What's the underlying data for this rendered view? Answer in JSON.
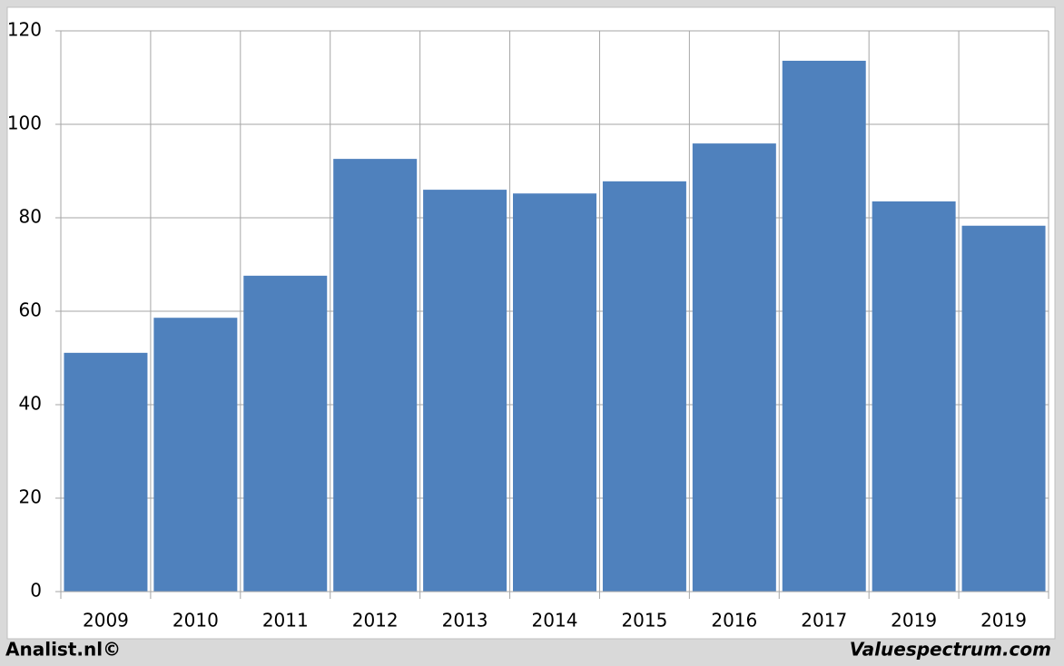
{
  "chart_data": {
    "type": "bar",
    "categories": [
      "2009",
      "2010",
      "2011",
      "2012",
      "2013",
      "2014",
      "2015",
      "2016",
      "2017",
      "2019",
      "2019"
    ],
    "values": [
      51.1,
      58.6,
      67.6,
      92.6,
      86.0,
      85.2,
      87.8,
      95.9,
      113.6,
      83.5,
      78.3
    ],
    "color": "#4f81bd",
    "ylim": [
      0,
      120
    ],
    "yticks": [
      0,
      20,
      40,
      60,
      80,
      100,
      120
    ],
    "grid": true,
    "source": "Analist.nl©",
    "credit": "Valuespectrum.com"
  }
}
